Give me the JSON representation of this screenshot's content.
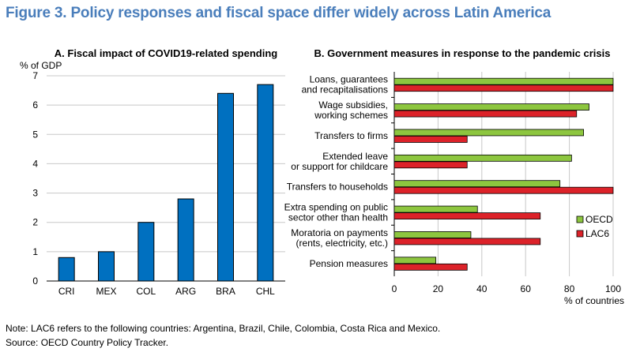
{
  "title": "Figure 3. Policy responses and fiscal space differ widely across Latin America",
  "colors": {
    "title": "#4a7ebb",
    "bar": "#0070c0",
    "oecd": "#8dc63f",
    "lac6": "#dc2229",
    "grid": "#c8c8c8"
  },
  "chart_data": [
    {
      "type": "bar",
      "title": "A. Fiscal impact of COVID19-related spending",
      "ylabel": "% of GDP",
      "categories": [
        "CRI",
        "MEX",
        "COL",
        "ARG",
        "BRA",
        "CHL"
      ],
      "values": [
        0.8,
        1.0,
        2.0,
        2.8,
        6.4,
        6.7
      ],
      "ylim": [
        0,
        7
      ],
      "yticks": [
        0,
        1,
        2,
        3,
        4,
        5,
        6,
        7
      ],
      "grid": true
    },
    {
      "type": "bar",
      "orientation": "horizontal",
      "title": "B. Government measures in response to the pandemic crisis",
      "xlabel": "% of countries",
      "categories": [
        [
          "Loans, guarantees",
          "and recapitalisations"
        ],
        [
          "Wage subsidies,",
          "working schemes"
        ],
        [
          "Transfers to firms"
        ],
        [
          "Extended leave",
          "or support for childcare"
        ],
        [
          "Transfers to households"
        ],
        [
          "Extra spending on public",
          "sector other than health"
        ],
        [
          "Moratoria on payments",
          "(rents, electricity, etc.)"
        ],
        [
          "Pension measures"
        ]
      ],
      "series": [
        {
          "name": "OECD",
          "values": [
            100,
            89,
            86.5,
            81,
            75.7,
            38,
            35,
            19
          ]
        },
        {
          "name": "LAC6",
          "values": [
            100,
            83.3,
            33.3,
            33.3,
            100,
            66.7,
            66.7,
            33.3
          ]
        }
      ],
      "xlim": [
        0,
        100
      ],
      "xticks": [
        0,
        20,
        40,
        60,
        80,
        100
      ],
      "legend": "bottom-right",
      "grid": true
    }
  ],
  "notes": [
    "Note: LAC6 refers to the following countries: Argentina, Brazil, Chile, Colombia, Costa Rica and Mexico.",
    "Source: OECD Country Policy Tracker."
  ]
}
